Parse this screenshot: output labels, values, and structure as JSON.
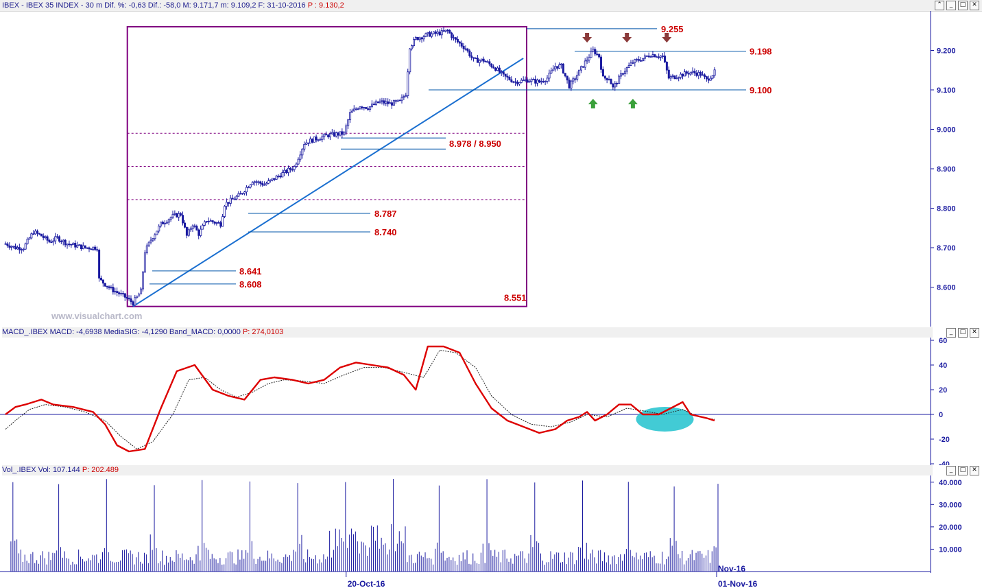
{
  "header": {
    "main": "IBEX - IBEX 35 INDEX - 30 m Dif. %: -0,63 Dif.: -58,0 M: 9.171,7 m: 9.109,2 F: 31-10-2016",
    "close": "P : 9.130,2",
    "buttons": [
      "⌃",
      "_",
      "□",
      "✕"
    ]
  },
  "watermark": "www.visualchart.com",
  "macd_header": {
    "main": "MACD_.IBEX MACD: -4,6938 MediaSIG: -4,1290 Band_MACD: 0,0000",
    "p": "P: 274,0103",
    "buttons": [
      "_",
      "□",
      "✕"
    ]
  },
  "vol_header": {
    "main": "Vol_.IBEX Vol: 107.144",
    "p": "P: 202.489",
    "buttons": [
      "_",
      "□",
      "✕"
    ]
  },
  "colors": {
    "candle": "#1a1aa0",
    "level": "#0055aa",
    "label": "#cc0000",
    "macd": "#dd0000",
    "signal": "#222222",
    "ellipse": "#2ec5d0",
    "fib": "#800080",
    "trend": "#1a6fd0",
    "down_arrow": "#8b3a3a",
    "up_arrow": "#3aa03a",
    "axis": "#1a1aa0"
  },
  "chart_data": [
    {
      "type": "candlestick",
      "title": "IBEX - IBEX 35 INDEX - 30 m",
      "ylim": [
        8500,
        9300
      ],
      "y_ticks": [
        "9.200",
        "9.100",
        "9.000",
        "8.900",
        "8.800",
        "8.700",
        "8.600"
      ],
      "y_tick_values": [
        9200,
        9100,
        9000,
        8900,
        8800,
        8700,
        8600
      ],
      "anchors": [
        [
          0,
          8710
        ],
        [
          5,
          8700
        ],
        [
          9,
          8700
        ],
        [
          14,
          8740
        ],
        [
          18,
          8730
        ],
        [
          22,
          8715
        ],
        [
          26,
          8725
        ],
        [
          31,
          8710
        ],
        [
          40,
          8700
        ],
        [
          46,
          8700
        ],
        [
          47,
          8620
        ],
        [
          53,
          8595
        ],
        [
          60,
          8575
        ],
        [
          64,
          8560
        ],
        [
          68,
          8590
        ],
        [
          70,
          8690
        ],
        [
          73,
          8720
        ],
        [
          78,
          8760
        ],
        [
          84,
          8780
        ],
        [
          88,
          8785
        ],
        [
          91,
          8730
        ],
        [
          94,
          8760
        ],
        [
          97,
          8735
        ],
        [
          101,
          8770
        ],
        [
          108,
          8760
        ],
        [
          110,
          8810
        ],
        [
          118,
          8835
        ],
        [
          124,
          8870
        ],
        [
          130,
          8860
        ],
        [
          138,
          8885
        ],
        [
          145,
          8905
        ],
        [
          150,
          8965
        ],
        [
          155,
          8975
        ],
        [
          162,
          8985
        ],
        [
          170,
          8990
        ],
        [
          173,
          9040
        ],
        [
          178,
          9060
        ],
        [
          182,
          9055
        ],
        [
          188,
          9070
        ],
        [
          193,
          9065
        ],
        [
          198,
          9070
        ],
        [
          201,
          9090
        ],
        [
          203,
          9210
        ],
        [
          206,
          9230
        ],
        [
          212,
          9240
        ],
        [
          219,
          9245
        ],
        [
          222,
          9250
        ],
        [
          225,
          9230
        ],
        [
          231,
          9205
        ],
        [
          235,
          9175
        ],
        [
          240,
          9175
        ],
        [
          246,
          9155
        ],
        [
          250,
          9135
        ],
        [
          256,
          9120
        ],
        [
          262,
          9125
        ],
        [
          268,
          9120
        ],
        [
          272,
          9130
        ],
        [
          276,
          9160
        ],
        [
          279,
          9160
        ],
        [
          283,
          9110
        ],
        [
          286,
          9130
        ],
        [
          291,
          9170
        ],
        [
          295,
          9200
        ],
        [
          298,
          9185
        ],
        [
          300,
          9130
        ],
        [
          303,
          9130
        ],
        [
          305,
          9105
        ],
        [
          310,
          9145
        ],
        [
          315,
          9170
        ],
        [
          320,
          9180
        ],
        [
          324,
          9190
        ],
        [
          330,
          9185
        ],
        [
          333,
          9130
        ],
        [
          337,
          9135
        ],
        [
          344,
          9145
        ],
        [
          349,
          9140
        ],
        [
          352,
          9125
        ],
        [
          356,
          9145
        ]
      ],
      "levels": [
        {
          "label": "9.255",
          "value": 9255
        },
        {
          "label": "9.198",
          "value": 9198
        },
        {
          "label": "9.100",
          "value": 9100
        },
        {
          "label": "8.978 / 8.950",
          "value": 8978,
          "value2": 8950
        },
        {
          "label": "8.787",
          "value": 8787
        },
        {
          "label": "8.740",
          "value": 8740
        },
        {
          "label": "8.641",
          "value": 8641
        },
        {
          "label": "8.608",
          "value": 8608
        },
        {
          "label": "8.551",
          "value": 8551
        }
      ],
      "fib_levels": [
        8990,
        8906,
        8822
      ],
      "range": {
        "high": 9260,
        "low": 8551
      },
      "trendline": [
        [
          64,
          8551
        ],
        [
          260,
          9180
        ]
      ],
      "down_arrows": [
        292,
        312,
        332
      ],
      "up_arrows": [
        295,
        315
      ],
      "last_close": 9130.2
    },
    {
      "type": "line",
      "title": "MACD_.IBEX",
      "ylim": [
        -40,
        60
      ],
      "y_ticks": [
        "60",
        "40",
        "20",
        "0",
        "-20",
        "-40"
      ],
      "y_tick_values": [
        60,
        40,
        20,
        0,
        -20,
        -40
      ],
      "zero_line": 0,
      "series": [
        {
          "name": "MACD",
          "points": [
            [
              0,
              0
            ],
            [
              5,
              6
            ],
            [
              10,
              8
            ],
            [
              18,
              12
            ],
            [
              24,
              8
            ],
            [
              34,
              6
            ],
            [
              44,
              2
            ],
            [
              50,
              -8
            ],
            [
              56,
              -25
            ],
            [
              62,
              -30
            ],
            [
              70,
              -28
            ],
            [
              78,
              5
            ],
            [
              86,
              35
            ],
            [
              95,
              40
            ],
            [
              104,
              20
            ],
            [
              112,
              15
            ],
            [
              120,
              12
            ],
            [
              128,
              28
            ],
            [
              135,
              30
            ],
            [
              144,
              28
            ],
            [
              152,
              25
            ],
            [
              160,
              28
            ],
            [
              168,
              38
            ],
            [
              176,
              42
            ],
            [
              184,
              40
            ],
            [
              192,
              38
            ],
            [
              200,
              32
            ],
            [
              206,
              20
            ],
            [
              212,
              55
            ],
            [
              220,
              55
            ],
            [
              228,
              50
            ],
            [
              236,
              25
            ],
            [
              244,
              5
            ],
            [
              252,
              -5
            ],
            [
              260,
              -10
            ],
            [
              268,
              -15
            ],
            [
              276,
              -12
            ],
            [
              282,
              -5
            ],
            [
              288,
              -2
            ],
            [
              292,
              2
            ],
            [
              296,
              -5
            ],
            [
              302,
              0
            ],
            [
              308,
              8
            ],
            [
              314,
              8
            ],
            [
              320,
              0
            ],
            [
              328,
              0
            ],
            [
              334,
              5
            ],
            [
              340,
              10
            ],
            [
              344,
              0
            ],
            [
              352,
              -3
            ],
            [
              356,
              -5
            ]
          ]
        },
        {
          "name": "MediaSIG",
          "points": [
            [
              0,
              -12
            ],
            [
              5,
              -5
            ],
            [
              12,
              4
            ],
            [
              20,
              8
            ],
            [
              30,
              6
            ],
            [
              40,
              2
            ],
            [
              50,
              -5
            ],
            [
              58,
              -18
            ],
            [
              66,
              -28
            ],
            [
              74,
              -22
            ],
            [
              84,
              0
            ],
            [
              92,
              28
            ],
            [
              100,
              30
            ],
            [
              108,
              20
            ],
            [
              116,
              14
            ],
            [
              124,
              18
            ],
            [
              132,
              25
            ],
            [
              140,
              28
            ],
            [
              150,
              27
            ],
            [
              160,
              25
            ],
            [
              170,
              32
            ],
            [
              180,
              38
            ],
            [
              190,
              38
            ],
            [
              200,
              34
            ],
            [
              210,
              30
            ],
            [
              218,
              52
            ],
            [
              226,
              50
            ],
            [
              236,
              38
            ],
            [
              244,
              15
            ],
            [
              254,
              0
            ],
            [
              264,
              -8
            ],
            [
              274,
              -10
            ],
            [
              284,
              -6
            ],
            [
              292,
              0
            ],
            [
              302,
              -2
            ],
            [
              312,
              5
            ],
            [
              320,
              3
            ],
            [
              330,
              0
            ],
            [
              340,
              4
            ],
            [
              348,
              -2
            ],
            [
              356,
              -4
            ]
          ]
        }
      ],
      "highlight": {
        "x": 340,
        "y": -5
      }
    },
    {
      "type": "bar",
      "title": "Vol_.IBEX",
      "ylim": [
        0,
        43000
      ],
      "y_ticks": [
        "40.000",
        "30.000",
        "20.000",
        "10.000"
      ],
      "y_tick_values": [
        40000,
        30000,
        20000,
        10000
      ],
      "session_count": 15,
      "bars_per_session": 17,
      "x_ticks": [
        {
          "label": "20-Oct-16",
          "index": 170
        },
        {
          "label": "01-Nov-16",
          "index": 356
        }
      ],
      "x_extra_label": "Nov-16",
      "last_volume": 107144
    }
  ]
}
